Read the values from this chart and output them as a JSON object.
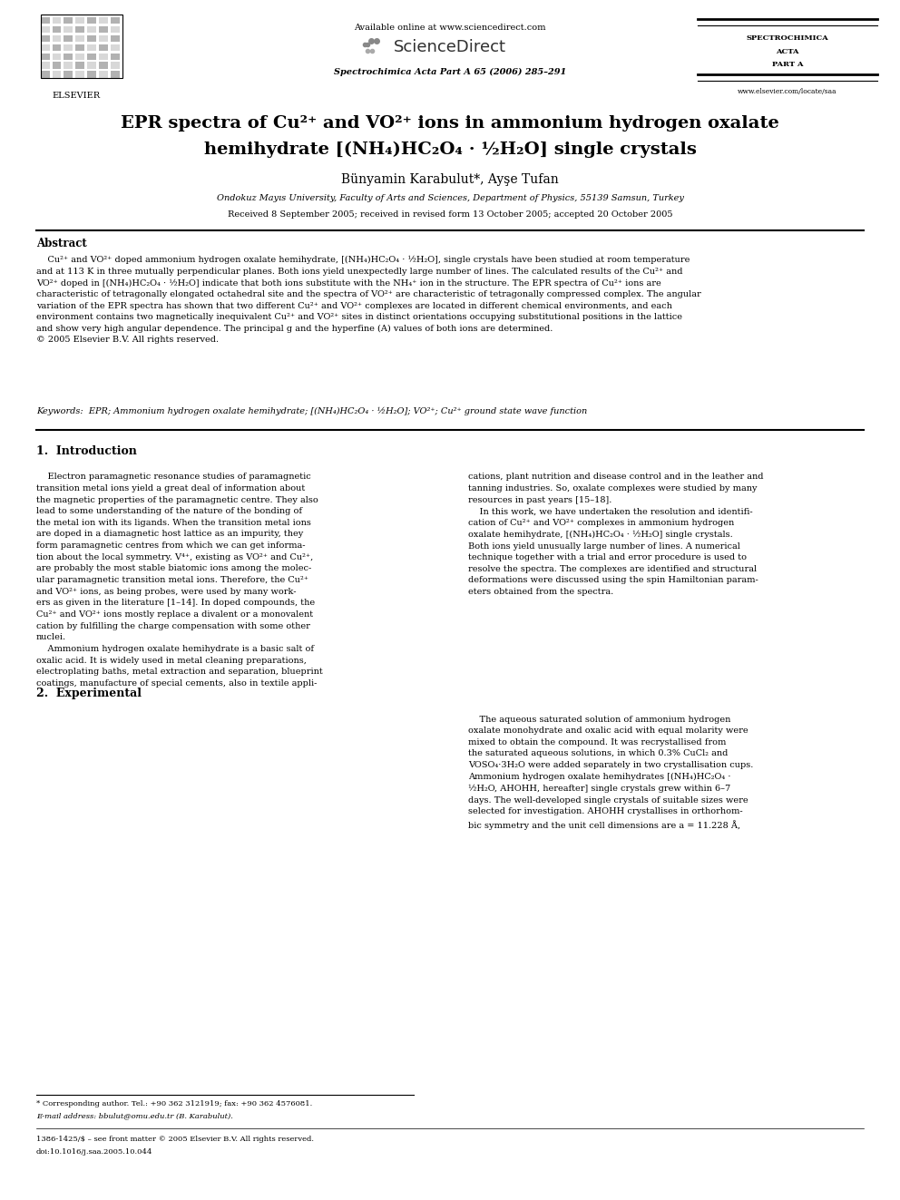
{
  "bg_color": "#ffffff",
  "page_width": 9.92,
  "page_height": 13.23,
  "header_available_online": "Available online at www.sciencedirect.com",
  "header_sciencedirect": "ScienceDirect",
  "header_journal_ref": "Spectrochimica Acta Part A 65 (2006) 285–291",
  "header_spectrochimica1": "SPECTROCHIMICA",
  "header_spectrochimica2": "ACTA",
  "header_spectrochimica3": "PART A",
  "header_website": "www.elsevier.com/locate/saa",
  "header_elsevier_text": "ELSEVIER",
  "title_line1": "EPR spectra of Cu²⁺ and VO²⁺ ions in ammonium hydrogen oxalate",
  "title_line2": "hemihydrate [(NH₄)HC₂O₄ · ½H₂O] single crystals",
  "authors": "Bünyamin Karabulut*, Ayşe Tufan",
  "affiliation": "Ondokuz Mayıs University, Faculty of Arts and Sciences, Department of Physics, 55139 Samsun, Turkey",
  "received": "Received 8 September 2005; received in revised form 13 October 2005; accepted 20 October 2005",
  "abstract_title": "Abstract",
  "abstract_text": "    Cu²⁺ and VO²⁺ doped ammonium hydrogen oxalate hemihydrate, [(NH₄)HC₂O₄ · ½H₂O], single crystals have been studied at room temperature\nand at 113 K in three mutually perpendicular planes. Both ions yield unexpectedly large number of lines. The calculated results of the Cu²⁺ and\nVO²⁺ doped in [(NH₄)HC₂O₄ · ½H₂O] indicate that both ions substitute with the NH₄⁺ ion in the structure. The EPR spectra of Cu²⁺ ions are\ncharacteristic of tetragonally elongated octahedral site and the spectra of VO²⁺ are characteristic of tetragonally compressed complex. The angular\nvariation of the EPR spectra has shown that two different Cu²⁺ and VO²⁺ complexes are located in different chemical environments, and each\nenvironment contains two magnetically inequivalent Cu²⁺ and VO²⁺ sites in distinct orientations occupying substitutional positions in the lattice\nand show very high angular dependence. The principal g and the hyperfine (A) values of both ions are determined.\n© 2005 Elsevier B.V. All rights reserved.",
  "keywords": "Keywords:  EPR; Ammonium hydrogen oxalate hemihydrate; [(NH₄)HC₂O₄ · ½H₂O]; VO²⁺; Cu²⁺ ground state wave function",
  "section1_title": "1.  Introduction",
  "intro_col1": "    Electron paramagnetic resonance studies of paramagnetic\ntransition metal ions yield a great deal of information about\nthe magnetic properties of the paramagnetic centre. They also\nlead to some understanding of the nature of the bonding of\nthe metal ion with its ligands. When the transition metal ions\nare doped in a diamagnetic host lattice as an impurity, they\nform paramagnetic centres from which we can get informa-\ntion about the local symmetry. V⁴⁺, existing as VO²⁺ and Cu²⁺,\nare probably the most stable biatomic ions among the molec-\nular paramagnetic transition metal ions. Therefore, the Cu²⁺\nand VO²⁺ ions, as being probes, were used by many work-\ners as given in the literature [1–14]. In doped compounds, the\nCu²⁺ and VO²⁺ ions mostly replace a divalent or a monovalent\ncation by fulfilling the charge compensation with some other\nnuclei.\n    Ammonium hydrogen oxalate hemihydrate is a basic salt of\noxalic acid. It is widely used in metal cleaning preparations,\nelectroplating baths, metal extraction and separation, blueprint\ncoatings, manufacture of special cements, also in textile appli-",
  "intro_col2": "cations, plant nutrition and disease control and in the leather and\ntanning industries. So, oxalate complexes were studied by many\nresources in past years [15–18].\n    In this work, we have undertaken the resolution and identifi-\ncation of Cu²⁺ and VO²⁺ complexes in ammonium hydrogen\noxalate hemihydrate, [(NH₄)HC₂O₄ · ½H₂O] single crystals.\nBoth ions yield unusually large number of lines. A numerical\ntechnique together with a trial and error procedure is used to\nresolve the spectra. The complexes are identified and structural\ndeformations were discussed using the spin Hamiltonian param-\neters obtained from the spectra.",
  "section2_title": "2.  Experimental",
  "exp_col2": "    The aqueous saturated solution of ammonium hydrogen\noxalate monohydrate and oxalic acid with equal molarity were\nmixed to obtain the compound. It was recrystallised from\nthe saturated aqueous solutions, in which 0.3% CuCl₂ and\nVOSO₄·3H₂O were added separately in two crystallisation cups.\nAmmonium hydrogen oxalate hemihydrates [(NH₄)HC₂O₄ ·\n½H₂O, AHOHH, hereafter] single crystals grew within 6–7\ndays. The well-developed single crystals of suitable sizes were\nselected for investigation. AHOHH crystallises in orthorhom-\nbic symmetry and the unit cell dimensions are a = 11.228 Å,",
  "footnote1": "* Corresponding author. Tel.: +90 362 3121919; fax: +90 362 4576081.",
  "footnote2": "E-mail address: bbulut@omu.edu.tr (B. Karabulut).",
  "footnote3": "1386-1425/$ – see front matter © 2005 Elsevier B.V. All rights reserved.",
  "footnote4": "doi:10.1016/j.saa.2005.10.044"
}
